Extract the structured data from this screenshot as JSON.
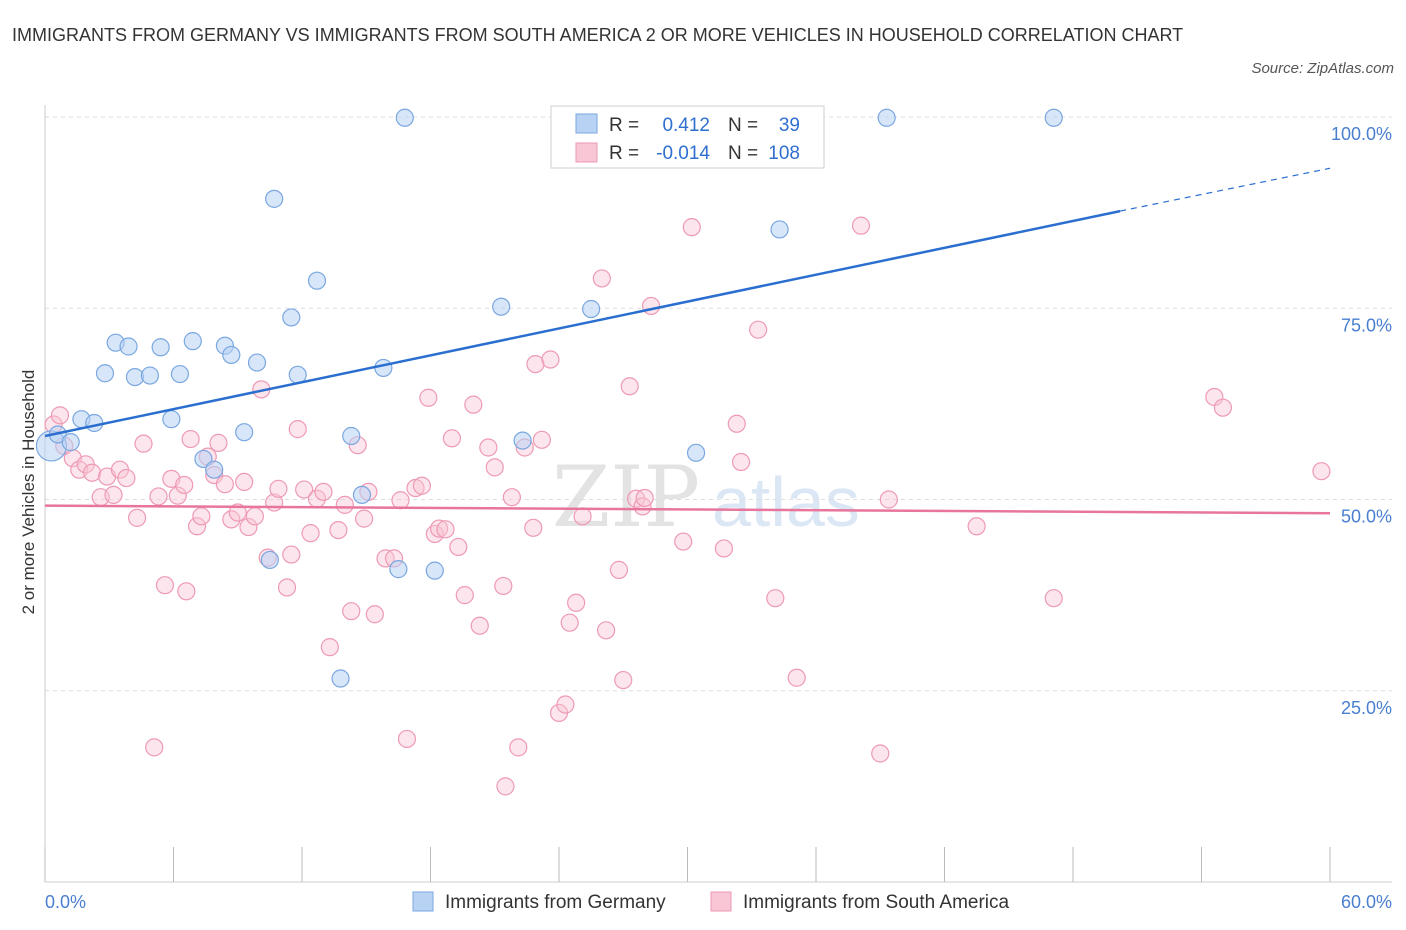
{
  "title": "IMMIGRANTS FROM GERMANY VS IMMIGRANTS FROM SOUTH AMERICA 2 OR MORE VEHICLES IN HOUSEHOLD CORRELATION CHART",
  "source": "Source: ZipAtlas.com",
  "watermark": {
    "a": "ZIP",
    "b": "atlas"
  },
  "legend": {
    "r_label": "R =",
    "n_label": "N =",
    "rows": [
      {
        "r": "0.412",
        "n": "39"
      },
      {
        "r": "-0.014",
        "n": "108"
      }
    ]
  },
  "colors": {
    "germany_fill": "#b8d2f4",
    "germany_stroke": "#7aa7e0",
    "germany_line": "#2a6fd0",
    "sa_fill": "#f8c6d5",
    "sa_stroke": "#ee9ab4",
    "sa_line": "#e8769c"
  },
  "chart_data": {
    "type": "scatter",
    "title": "IMMIGRANTS FROM GERMANY VS IMMIGRANTS FROM SOUTH AMERICA 2 OR MORE VEHICLES IN HOUSEHOLD CORRELATION CHART",
    "xlabel": "",
    "ylabel": "2 or more Vehicles in Household",
    "xlim": [
      0,
      60
    ],
    "ylim": [
      0,
      100
    ],
    "x_tick_labels": [
      "0.0%",
      "60.0%"
    ],
    "y_tick_labels": [
      "25.0%",
      "50.0%",
      "75.0%",
      "100.0%"
    ],
    "y_tick_values": [
      25,
      50,
      75,
      100
    ],
    "grid": true,
    "legend_position": "top-center",
    "series": [
      {
        "name": "Immigrants from Germany",
        "R": 0.412,
        "N": 39,
        "trend": {
          "x": [
            0,
            50.2
          ],
          "y": [
            58.3,
            87.7
          ],
          "dash_to": [
            60,
            93.3
          ]
        },
        "points": [
          [
            0.3,
            57.0
          ],
          [
            0.6,
            58.5
          ],
          [
            1.2,
            57.5
          ],
          [
            1.7,
            60.5
          ],
          [
            2.3,
            60.0
          ],
          [
            2.8,
            66.5
          ],
          [
            3.3,
            70.5
          ],
          [
            3.9,
            70.0
          ],
          [
            4.2,
            66.0
          ],
          [
            4.9,
            66.2
          ],
          [
            5.4,
            69.9
          ],
          [
            5.9,
            60.5
          ],
          [
            6.3,
            66.4
          ],
          [
            6.9,
            70.7
          ],
          [
            7.4,
            55.3
          ],
          [
            7.9,
            53.9
          ],
          [
            8.4,
            70.1
          ],
          [
            8.7,
            68.9
          ],
          [
            9.3,
            58.8
          ],
          [
            9.9,
            67.9
          ],
          [
            10.5,
            42.1
          ],
          [
            10.7,
            89.3
          ],
          [
            11.5,
            73.8
          ],
          [
            11.8,
            66.3
          ],
          [
            12.7,
            78.6
          ],
          [
            13.8,
            26.6
          ],
          [
            14.3,
            58.3
          ],
          [
            14.8,
            50.6
          ],
          [
            15.8,
            67.2
          ],
          [
            16.5,
            40.9
          ],
          [
            16.8,
            99.9
          ],
          [
            18.2,
            40.7
          ],
          [
            21.3,
            75.2
          ],
          [
            22.3,
            57.7
          ],
          [
            25.5,
            74.9
          ],
          [
            30.4,
            56.1
          ],
          [
            34.3,
            85.3
          ],
          [
            39.3,
            99.9
          ],
          [
            47.1,
            99.9
          ]
        ]
      },
      {
        "name": "Immigrants from South America",
        "R": -0.014,
        "N": 108,
        "trend": {
          "x": [
            0,
            60
          ],
          "y": [
            49.2,
            48.2
          ]
        },
        "points": [
          [
            0.4,
            59.8
          ],
          [
            0.7,
            61.0
          ],
          [
            0.9,
            57.0
          ],
          [
            1.3,
            55.4
          ],
          [
            1.6,
            53.9
          ],
          [
            1.9,
            54.6
          ],
          [
            2.2,
            53.5
          ],
          [
            2.6,
            50.3
          ],
          [
            2.9,
            53.0
          ],
          [
            3.2,
            50.6
          ],
          [
            3.5,
            53.9
          ],
          [
            3.8,
            52.8
          ],
          [
            4.3,
            47.6
          ],
          [
            4.6,
            57.3
          ],
          [
            5.1,
            17.6
          ],
          [
            5.3,
            50.4
          ],
          [
            5.6,
            38.8
          ],
          [
            5.9,
            52.7
          ],
          [
            6.2,
            50.5
          ],
          [
            6.5,
            51.9
          ],
          [
            6.8,
            57.9
          ],
          [
            7.1,
            46.5
          ],
          [
            7.3,
            47.8
          ],
          [
            7.6,
            55.6
          ],
          [
            7.9,
            53.2
          ],
          [
            8.1,
            57.4
          ],
          [
            8.4,
            52.0
          ],
          [
            8.7,
            47.4
          ],
          [
            9.0,
            48.3
          ],
          [
            9.3,
            52.3
          ],
          [
            9.5,
            46.4
          ],
          [
            9.8,
            47.8
          ],
          [
            10.1,
            64.4
          ],
          [
            10.4,
            42.4
          ],
          [
            10.7,
            49.6
          ],
          [
            10.9,
            51.4
          ],
          [
            11.3,
            38.5
          ],
          [
            11.5,
            42.8
          ],
          [
            11.8,
            59.2
          ],
          [
            12.1,
            51.3
          ],
          [
            12.4,
            45.6
          ],
          [
            12.7,
            50.1
          ],
          [
            13.0,
            51.0
          ],
          [
            13.3,
            30.7
          ],
          [
            13.7,
            46.0
          ],
          [
            14.0,
            49.3
          ],
          [
            14.3,
            35.4
          ],
          [
            14.6,
            57.1
          ],
          [
            14.9,
            47.5
          ],
          [
            15.1,
            51.0
          ],
          [
            15.4,
            35.0
          ],
          [
            15.9,
            42.3
          ],
          [
            16.3,
            42.3
          ],
          [
            16.6,
            49.9
          ],
          [
            16.9,
            18.7
          ],
          [
            17.3,
            51.5
          ],
          [
            17.6,
            51.8
          ],
          [
            17.9,
            63.3
          ],
          [
            18.2,
            45.5
          ],
          [
            18.4,
            46.2
          ],
          [
            18.7,
            46.1
          ],
          [
            19.0,
            58.0
          ],
          [
            19.3,
            43.8
          ],
          [
            19.6,
            37.5
          ],
          [
            20.0,
            62.4
          ],
          [
            20.3,
            33.5
          ],
          [
            20.7,
            56.8
          ],
          [
            21.0,
            54.2
          ],
          [
            21.4,
            38.7
          ],
          [
            21.8,
            50.3
          ],
          [
            22.1,
            17.6
          ],
          [
            22.4,
            56.8
          ],
          [
            22.8,
            46.3
          ],
          [
            22.9,
            67.7
          ],
          [
            23.2,
            57.8
          ],
          [
            23.6,
            68.3
          ],
          [
            24.0,
            22.1
          ],
          [
            24.3,
            23.2
          ],
          [
            24.5,
            33.9
          ],
          [
            24.8,
            36.5
          ],
          [
            25.1,
            47.8
          ],
          [
            26.0,
            78.9
          ],
          [
            26.2,
            32.9
          ],
          [
            26.8,
            40.8
          ],
          [
            27.0,
            26.4
          ],
          [
            27.3,
            64.8
          ],
          [
            27.6,
            50.1
          ],
          [
            27.9,
            49.1
          ],
          [
            28.3,
            75.3
          ],
          [
            29.8,
            44.5
          ],
          [
            30.2,
            85.6
          ],
          [
            31.7,
            43.6
          ],
          [
            32.3,
            59.9
          ],
          [
            32.5,
            54.9
          ],
          [
            33.3,
            72.2
          ],
          [
            34.1,
            37.1
          ],
          [
            35.1,
            26.7
          ],
          [
            38.1,
            85.8
          ],
          [
            39.0,
            16.8
          ],
          [
            39.4,
            50.0
          ],
          [
            43.5,
            46.5
          ],
          [
            47.1,
            37.1
          ],
          [
            54.6,
            63.4
          ],
          [
            55.0,
            62.0
          ],
          [
            59.6,
            53.7
          ],
          [
            21.5,
            12.5
          ],
          [
            28.0,
            50.2
          ],
          [
            6.6,
            38.0
          ]
        ]
      }
    ]
  }
}
